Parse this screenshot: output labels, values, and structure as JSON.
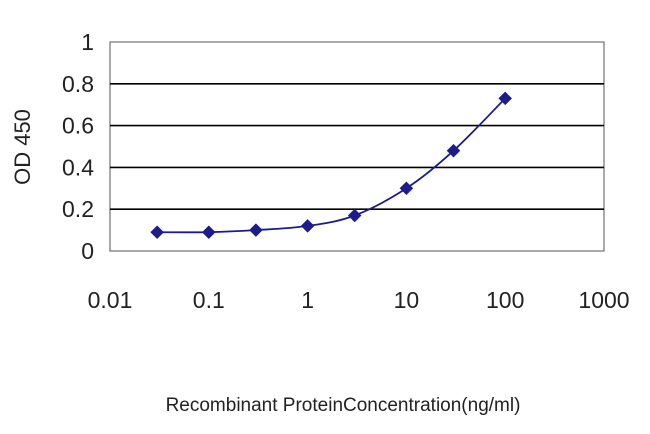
{
  "chart_data": {
    "type": "line",
    "title": "",
    "xlabel": "Recombinant ProteinConcentration(ng/ml)",
    "ylabel": "OD 450",
    "x_scale": "log",
    "xlim": [
      0.01,
      1000
    ],
    "ylim": [
      0,
      1
    ],
    "x_ticks": [
      "0.01",
      "0.1",
      "1",
      "10",
      "100",
      "1000"
    ],
    "y_ticks": [
      "0",
      "0.2",
      "0.4",
      "0.6",
      "0.8",
      "1"
    ],
    "grid": "horizontal",
    "legend": "none",
    "series": [
      {
        "x": [
          0.03,
          0.1,
          0.3,
          1,
          3,
          10,
          30,
          100
        ],
        "y": [
          0.09,
          0.09,
          0.1,
          0.12,
          0.17,
          0.3,
          0.48,
          0.73
        ]
      }
    ],
    "colors": {
      "series": "#1c1c8c",
      "grid": "#000000",
      "plot_border": "#555555"
    }
  }
}
